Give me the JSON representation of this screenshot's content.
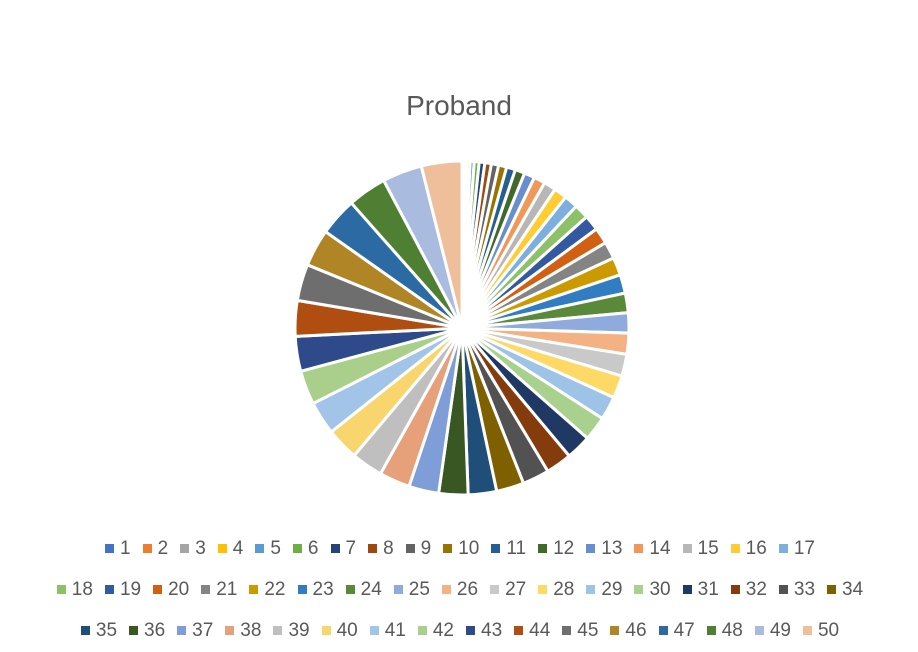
{
  "chart_data": {
    "type": "pie",
    "title": "Proband",
    "legend_position": "bottom",
    "categories": [
      "1",
      "2",
      "3",
      "4",
      "5",
      "6",
      "7",
      "8",
      "9",
      "10",
      "11",
      "12",
      "13",
      "14",
      "15",
      "16",
      "17",
      "18",
      "19",
      "20",
      "21",
      "22",
      "23",
      "24",
      "25",
      "26",
      "27",
      "28",
      "29",
      "30",
      "31",
      "32",
      "33",
      "34",
      "35",
      "36",
      "37",
      "38",
      "39",
      "40",
      "41",
      "42",
      "43",
      "44",
      "45",
      "46",
      "47",
      "48",
      "49",
      "50"
    ],
    "values": [
      1,
      2,
      3,
      4,
      5,
      6,
      7,
      8,
      9,
      10,
      11,
      12,
      13,
      14,
      15,
      16,
      17,
      18,
      19,
      20,
      21,
      22,
      23,
      24,
      25,
      26,
      27,
      28,
      29,
      30,
      31,
      32,
      33,
      34,
      35,
      36,
      37,
      38,
      39,
      40,
      41,
      42,
      43,
      44,
      45,
      46,
      47,
      48,
      49,
      50
    ],
    "colors": [
      "#4472C4",
      "#ED7D31",
      "#A5A5A5",
      "#FFC000",
      "#5B9BD5",
      "#70AD47",
      "#264478",
      "#9E480E",
      "#636363",
      "#997300",
      "#255E91",
      "#43682B",
      "#698ED0",
      "#F1975A",
      "#B7B7B7",
      "#FFCD33",
      "#7CAFDD",
      "#8CC168",
      "#335AA1",
      "#D26012",
      "#848484",
      "#CC9A00",
      "#327DC2",
      "#5A8A39",
      "#8FAADC",
      "#F4B183",
      "#C9C9C9",
      "#FFD966",
      "#9DC3E6",
      "#A9D18E",
      "#1F3864",
      "#843C0C",
      "#525252",
      "#7F6000",
      "#1F4E79",
      "#385723",
      "#7F9DD6",
      "#E6A17A",
      "#BFBFBF",
      "#F9D56E",
      "#A2C4E8",
      "#A9CF8A",
      "#2E4A8A",
      "#B04E12",
      "#6E6E6E",
      "#B08525",
      "#2C6AA3",
      "#4F7F32",
      "#A9BCE0",
      "#EFBF9C"
    ]
  }
}
